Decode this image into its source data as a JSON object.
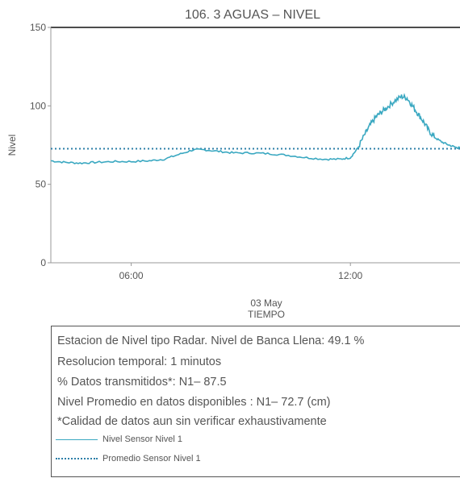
{
  "chart_data": {
    "type": "line",
    "title": "106. 3 AGUAS – NIVEL",
    "ylabel": "Nivel",
    "xlabel_date": "03 May",
    "xlabel": "TIEMPO",
    "ylim": [
      0,
      150
    ],
    "yticks": [
      "0",
      "50",
      "100",
      "150"
    ],
    "xrange_hours": [
      3.8,
      15.0
    ],
    "xticks": [
      {
        "hour": 6,
        "label": "06:00"
      },
      {
        "hour": 12,
        "label": "12:00"
      }
    ],
    "series": [
      {
        "name": "Nivel Sensor Nivel 1",
        "color": "#3aa8c1",
        "style": "solid",
        "points": [
          [
            3.8,
            65
          ],
          [
            4.2,
            64
          ],
          [
            4.6,
            63.5
          ],
          [
            5.0,
            64
          ],
          [
            5.5,
            64.5
          ],
          [
            6.0,
            64.5
          ],
          [
            6.5,
            65
          ],
          [
            6.9,
            66
          ],
          [
            7.3,
            69
          ],
          [
            7.7,
            72
          ],
          [
            8.0,
            72
          ],
          [
            8.4,
            71
          ],
          [
            8.8,
            70
          ],
          [
            9.3,
            70
          ],
          [
            9.8,
            69.5
          ],
          [
            10.3,
            68.5
          ],
          [
            10.8,
            67
          ],
          [
            11.3,
            66
          ],
          [
            11.7,
            66
          ],
          [
            12.0,
            67
          ],
          [
            12.2,
            73
          ],
          [
            12.4,
            82
          ],
          [
            12.55,
            88
          ],
          [
            12.7,
            93
          ],
          [
            12.85,
            96
          ],
          [
            13.0,
            99
          ],
          [
            13.2,
            103
          ],
          [
            13.4,
            106
          ],
          [
            13.55,
            105
          ],
          [
            13.7,
            100
          ],
          [
            13.85,
            95
          ],
          [
            14.0,
            90
          ],
          [
            14.15,
            84
          ],
          [
            14.3,
            80
          ],
          [
            14.5,
            77
          ],
          [
            14.7,
            75
          ],
          [
            14.9,
            73.5
          ],
          [
            15.0,
            73
          ]
        ]
      },
      {
        "name": "Promedio Sensor Nivel 1",
        "color": "#2d7fa8",
        "style": "dotted",
        "value": 72.7
      }
    ]
  },
  "info": {
    "line1": "Estacion de Nivel tipo Radar. Nivel de Banca Llena: 49.1 %",
    "line2": "Resolucion temporal: 1 minutos",
    "line3": "% Datos transmitidos*: N1– 87.5",
    "line4": "Nivel Promedio en datos disponibles : N1– 72.7 (cm)",
    "line5": "*Calidad de datos aun sin verificar exhaustivamente"
  },
  "legend": {
    "solid_label": "Nivel Sensor Nivel 1",
    "dotted_label": "Promedio Sensor Nivel 1"
  }
}
